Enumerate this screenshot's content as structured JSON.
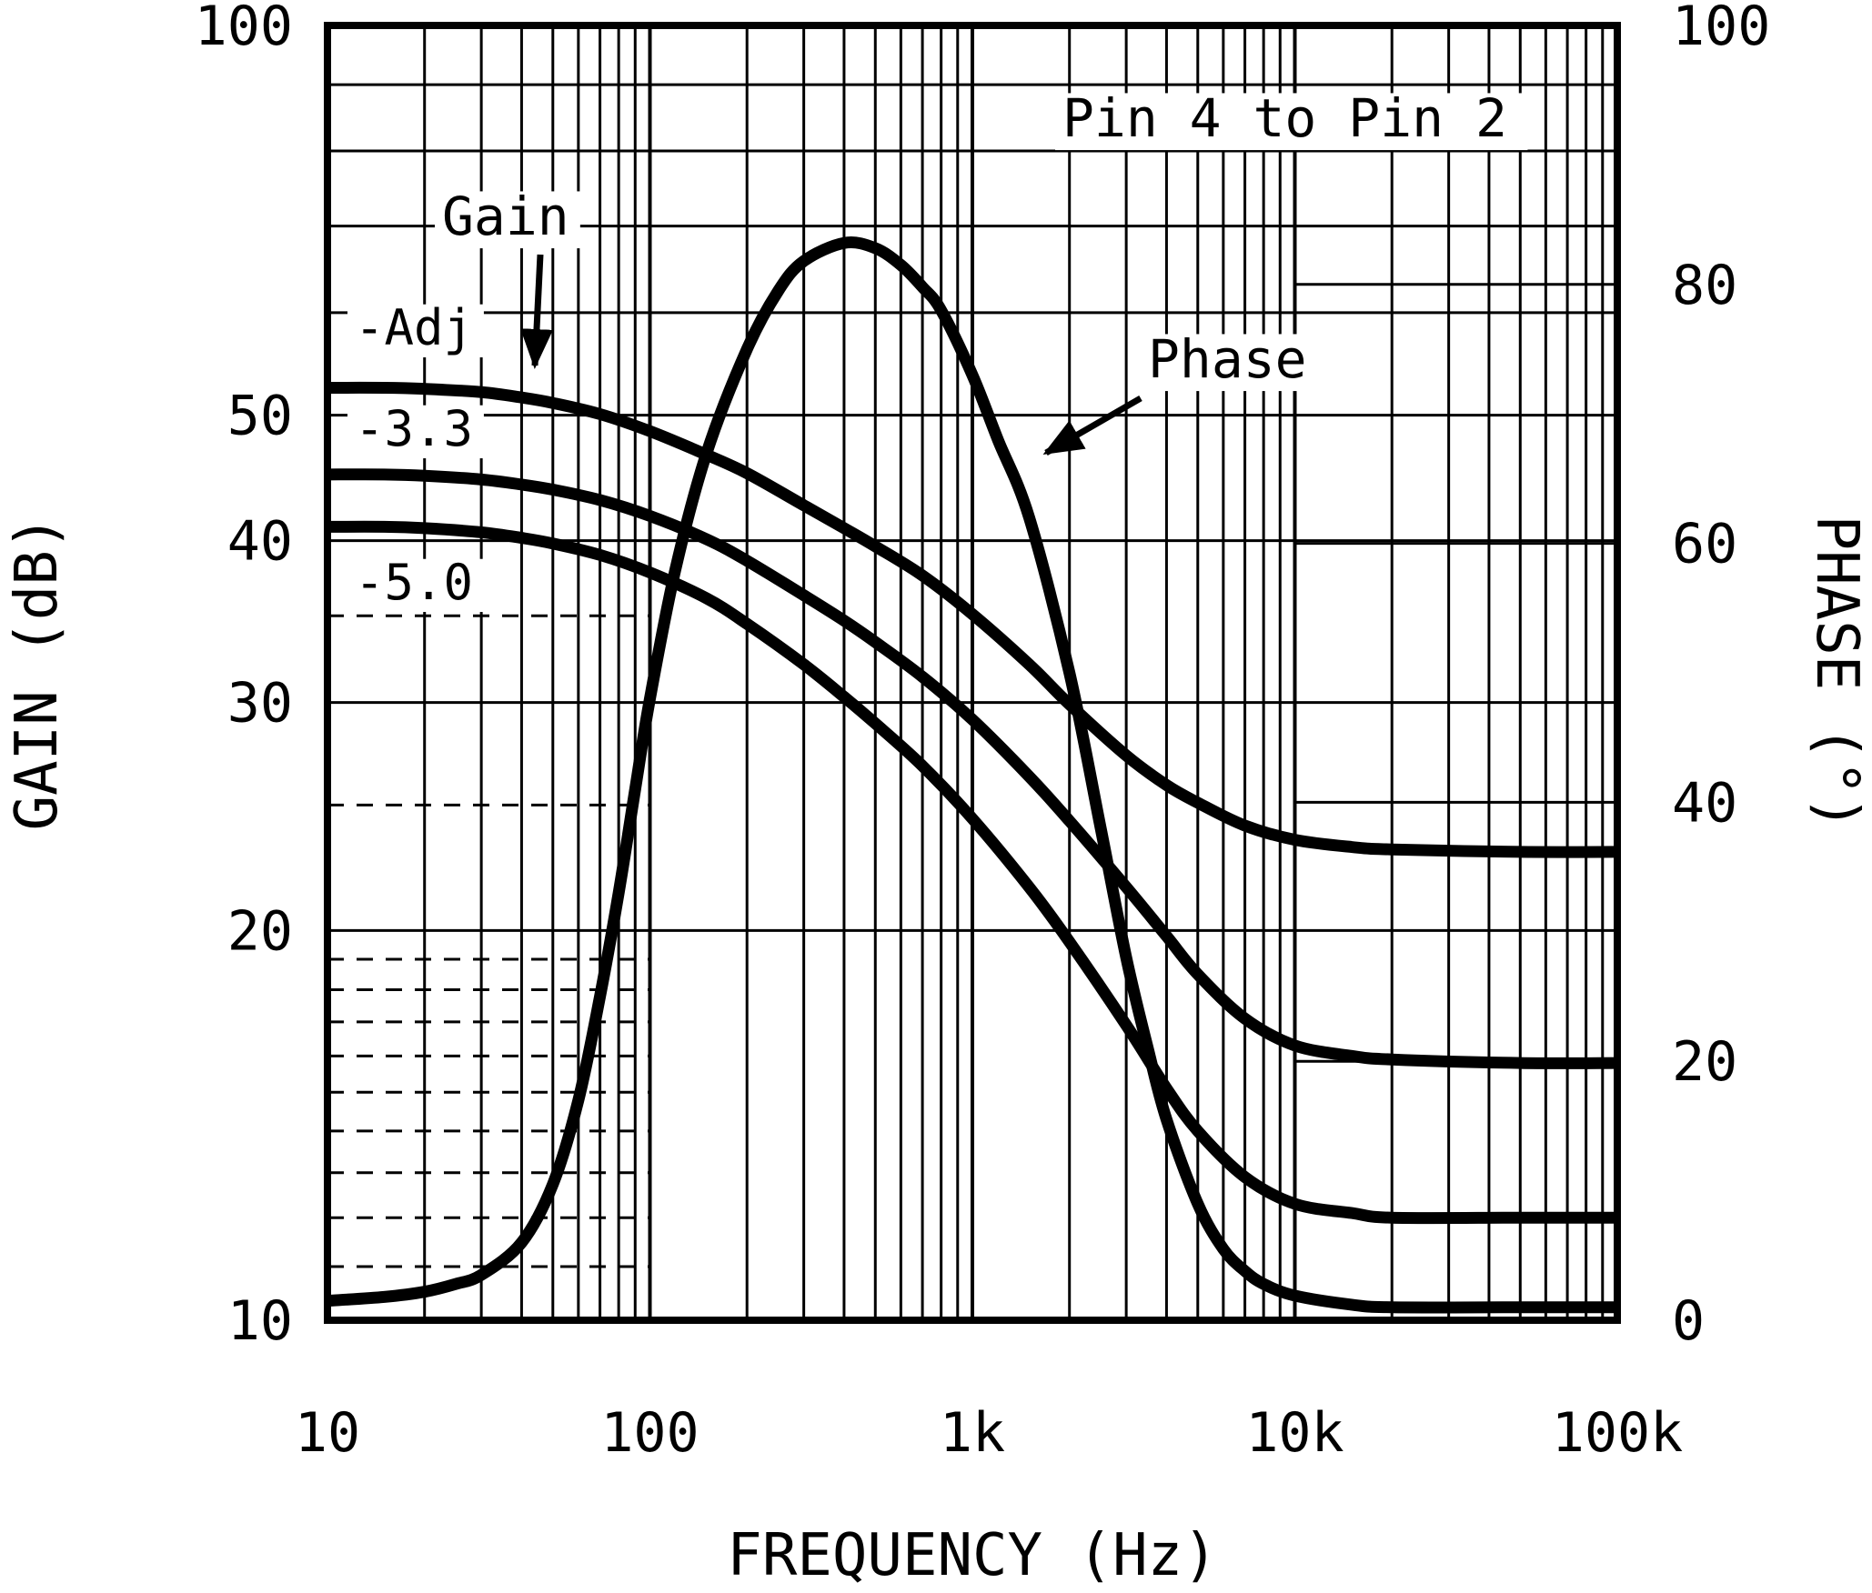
{
  "colors": {
    "ink": "#000000",
    "background": "#ffffff"
  },
  "chart_data": {
    "type": "line",
    "title": "Pin 4 to Pin 2",
    "xlabel": "FREQUENCY (Hz)",
    "ylabel_left": "GAIN (dB)",
    "ylabel_right": "PHASE (°)",
    "x_axis": {
      "scale": "log",
      "min": 10,
      "max": 100000,
      "ticks": [
        {
          "value": 10,
          "label": "10"
        },
        {
          "value": 100,
          "label": "100"
        },
        {
          "value": 1000,
          "label": "1k"
        },
        {
          "value": 10000,
          "label": "10k"
        },
        {
          "value": 100000,
          "label": "100k"
        }
      ]
    },
    "y_left": {
      "label": "GAIN (dB)",
      "scale": "log",
      "min": 10,
      "max": 100,
      "ticks": [
        {
          "value": 100,
          "label": "100"
        },
        {
          "value": 50,
          "label": "50"
        },
        {
          "value": 40,
          "label": "40"
        },
        {
          "value": 30,
          "label": "30"
        },
        {
          "value": 20,
          "label": "20"
        },
        {
          "value": 10,
          "label": "10"
        }
      ],
      "solid_gridlines": [
        20,
        30,
        40,
        50,
        60,
        70,
        80,
        90
      ],
      "dashed_gridlines": [
        11,
        12,
        13,
        14,
        15,
        16,
        17,
        18,
        19,
        25,
        35
      ],
      "dashed_gridline_max_hz": 100
    },
    "y_right": {
      "label": "PHASE (°)",
      "scale": "linear",
      "min": 0,
      "max": 100,
      "ticks": [
        {
          "value": 100,
          "label": "100"
        },
        {
          "value": 80,
          "label": "80"
        },
        {
          "value": 60,
          "label": "60"
        },
        {
          "value": 40,
          "label": "40"
        },
        {
          "value": 20,
          "label": "20"
        },
        {
          "value": 0,
          "label": "0"
        }
      ],
      "solid_gridlines": [
        20,
        40,
        60,
        80
      ],
      "gridline_min_hz": 10000
    },
    "annotations": {
      "corner_note": "Pin 4 to Pin 2",
      "gain_pointer": "Gain",
      "phase_pointer": "Phase",
      "curve_label_adj": "-Adj",
      "curve_label_33": "-3.3",
      "curve_label_50": "-5.0"
    },
    "series": [
      {
        "id": "gain-adj",
        "name": "Gain (Adj)",
        "axis": "left",
        "unit": "dB",
        "points": [
          [
            10,
            52.5
          ],
          [
            15,
            52.5
          ],
          [
            20,
            52.4
          ],
          [
            30,
            52.1
          ],
          [
            40,
            51.6
          ],
          [
            50,
            51.1
          ],
          [
            70,
            50.1
          ],
          [
            100,
            48.6
          ],
          [
            150,
            46.6
          ],
          [
            200,
            45.1
          ],
          [
            300,
            42.6
          ],
          [
            400,
            40.9
          ],
          [
            500,
            39.6
          ],
          [
            700,
            37.6
          ],
          [
            1000,
            35.1
          ],
          [
            1500,
            32.1
          ],
          [
            2000,
            29.9
          ],
          [
            3000,
            27.3
          ],
          [
            4000,
            25.9
          ],
          [
            5000,
            25.1
          ],
          [
            7000,
            24.1
          ],
          [
            10000,
            23.5
          ],
          [
            15000,
            23.2
          ],
          [
            20000,
            23.1
          ],
          [
            50000,
            23
          ],
          [
            100000,
            23
          ]
        ]
      },
      {
        "id": "gain-3p3",
        "name": "Gain (-3.3)",
        "axis": "left",
        "unit": "dB",
        "points": [
          [
            10,
            45
          ],
          [
            15,
            45
          ],
          [
            20,
            44.9
          ],
          [
            30,
            44.6
          ],
          [
            40,
            44.2
          ],
          [
            50,
            43.8
          ],
          [
            70,
            43
          ],
          [
            100,
            41.8
          ],
          [
            150,
            40.1
          ],
          [
            200,
            38.6
          ],
          [
            300,
            36.3
          ],
          [
            400,
            34.7
          ],
          [
            500,
            33.4
          ],
          [
            700,
            31.4
          ],
          [
            1000,
            29.1
          ],
          [
            1500,
            26.3
          ],
          [
            2000,
            24.3
          ],
          [
            3000,
            21.6
          ],
          [
            4000,
            19.8
          ],
          [
            5000,
            18.5
          ],
          [
            7000,
            17.1
          ],
          [
            10000,
            16.3
          ],
          [
            15000,
            16
          ],
          [
            20000,
            15.9
          ],
          [
            50000,
            15.8
          ],
          [
            100000,
            15.8
          ]
        ]
      },
      {
        "id": "gain-5p0",
        "name": "Gain (-5.0)",
        "axis": "left",
        "unit": "dB",
        "points": [
          [
            10,
            41
          ],
          [
            15,
            41
          ],
          [
            20,
            40.9
          ],
          [
            30,
            40.6
          ],
          [
            40,
            40.2
          ],
          [
            50,
            39.8
          ],
          [
            70,
            39
          ],
          [
            100,
            37.8
          ],
          [
            150,
            36.1
          ],
          [
            200,
            34.5
          ],
          [
            300,
            32.1
          ],
          [
            400,
            30.3
          ],
          [
            500,
            28.9
          ],
          [
            700,
            26.8
          ],
          [
            1000,
            24.4
          ],
          [
            1500,
            21.6
          ],
          [
            2000,
            19.6
          ],
          [
            3000,
            16.9
          ],
          [
            4000,
            15.1
          ],
          [
            5000,
            14
          ],
          [
            7000,
            12.9
          ],
          [
            10000,
            12.3
          ],
          [
            15000,
            12.1
          ],
          [
            20000,
            12
          ],
          [
            50000,
            12
          ],
          [
            100000,
            12
          ]
        ]
      },
      {
        "id": "phase",
        "name": "Phase",
        "axis": "right",
        "unit": "deg",
        "points": [
          [
            10,
            1.5
          ],
          [
            15,
            1.8
          ],
          [
            20,
            2.2
          ],
          [
            25,
            2.8
          ],
          [
            30,
            3.5
          ],
          [
            40,
            6
          ],
          [
            50,
            10.5
          ],
          [
            60,
            17
          ],
          [
            70,
            25
          ],
          [
            80,
            33
          ],
          [
            90,
            41
          ],
          [
            100,
            48
          ],
          [
            120,
            58
          ],
          [
            150,
            67
          ],
          [
            200,
            75
          ],
          [
            250,
            79.5
          ],
          [
            300,
            81.8
          ],
          [
            400,
            83.2
          ],
          [
            500,
            82.8
          ],
          [
            600,
            81.5
          ],
          [
            700,
            79.8
          ],
          [
            800,
            78
          ],
          [
            1000,
            73
          ],
          [
            1200,
            68
          ],
          [
            1500,
            62
          ],
          [
            2000,
            50
          ],
          [
            2500,
            38
          ],
          [
            3000,
            28
          ],
          [
            3500,
            21
          ],
          [
            4000,
            15.5
          ],
          [
            5000,
            9
          ],
          [
            6000,
            5.5
          ],
          [
            7000,
            3.8
          ],
          [
            8000,
            2.8
          ],
          [
            10000,
            1.9
          ],
          [
            15000,
            1.2
          ],
          [
            20000,
            1
          ],
          [
            50000,
            1
          ],
          [
            100000,
            1
          ]
        ]
      }
    ],
    "layout_hints": {
      "grid": "log-log left axis, log-linear right axis",
      "legend": "none (arrow annotations instead)"
    }
  }
}
